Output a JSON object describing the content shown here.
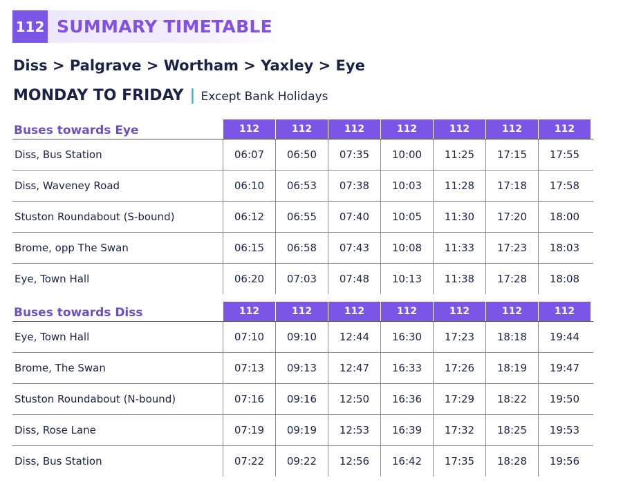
{
  "header": {
    "route_number": "112",
    "title": "SUMMARY TIMETABLE",
    "route_line": "Diss > Palgrave > Wortham > Yaxley > Eye",
    "days_title": "MONDAY TO FRIDAY",
    "days_separator": "|",
    "days_note": "Except Bank Holidays"
  },
  "colors": {
    "accent_purple": "#7a55e6",
    "title_purple": "#8250e8",
    "section_title": "#6a4fc0",
    "navy_text": "#1a2246",
    "separator_teal": "#3bb4c6"
  },
  "tables": [
    {
      "title": "Buses towards Eye",
      "services": [
        "112",
        "112",
        "112",
        "112",
        "112",
        "112",
        "112"
      ],
      "rows": [
        {
          "stop": "Diss, Bus Station",
          "times": [
            "06:07",
            "06:50",
            "07:35",
            "10:00",
            "11:25",
            "17:15",
            "17:55"
          ]
        },
        {
          "stop": "Diss, Waveney Road",
          "times": [
            "06:10",
            "06:53",
            "07:38",
            "10:03",
            "11:28",
            "17:18",
            "17:58"
          ]
        },
        {
          "stop": "Stuston Roundabout (S-bound)",
          "times": [
            "06:12",
            "06:55",
            "07:40",
            "10:05",
            "11:30",
            "17:20",
            "18:00"
          ]
        },
        {
          "stop": "Brome, opp The Swan",
          "times": [
            "06:15",
            "06:58",
            "07:43",
            "10:08",
            "11:33",
            "17:23",
            "18:03"
          ]
        },
        {
          "stop": "Eye, Town Hall",
          "times": [
            "06:20",
            "07:03",
            "07:48",
            "10:13",
            "11:38",
            "17:28",
            "18:08"
          ]
        }
      ]
    },
    {
      "title": "Buses towards Diss",
      "services": [
        "112",
        "112",
        "112",
        "112",
        "112",
        "112",
        "112"
      ],
      "rows": [
        {
          "stop": "Eye, Town Hall",
          "times": [
            "07:10",
            "09:10",
            "12:44",
            "16:30",
            "17:23",
            "18:18",
            "19:44"
          ]
        },
        {
          "stop": "Brome, The Swan",
          "times": [
            "07:13",
            "09:13",
            "12:47",
            "16:33",
            "17:26",
            "18:19",
            "19:47"
          ]
        },
        {
          "stop": "Stuston Roundabout (N-bound)",
          "times": [
            "07:16",
            "09:16",
            "12:50",
            "16:36",
            "17:29",
            "18:22",
            "19:50"
          ]
        },
        {
          "stop": "Diss, Rose Lane",
          "times": [
            "07:19",
            "09:19",
            "12:53",
            "16:39",
            "17:32",
            "18:25",
            "19:53"
          ]
        },
        {
          "stop": "Diss, Bus Station",
          "times": [
            "07:22",
            "09:22",
            "12:56",
            "16:42",
            "17:35",
            "18:28",
            "19:56"
          ]
        }
      ]
    }
  ]
}
